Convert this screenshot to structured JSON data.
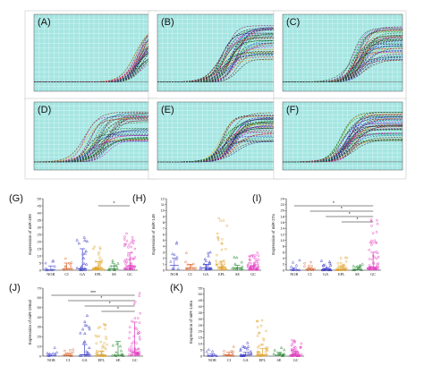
{
  "chart_data": [
    {
      "id": "A",
      "type": "line",
      "panel_label": "(A)",
      "curve_start": 0.72,
      "curve_spread": 0.06,
      "curve_count": 34,
      "dashed": true
    },
    {
      "id": "B",
      "type": "line",
      "panel_label": "(B)",
      "curve_start": 0.4,
      "curve_spread": 0.16,
      "curve_count": 40,
      "dashed": true
    },
    {
      "id": "C",
      "type": "line",
      "panel_label": "(C)",
      "curve_start": 0.45,
      "curve_spread": 0.12,
      "curve_count": 40,
      "dashed": true
    },
    {
      "id": "D",
      "type": "line",
      "panel_label": "(D)",
      "curve_start": 0.3,
      "curve_spread": 0.22,
      "curve_count": 36,
      "dashed": true
    },
    {
      "id": "E",
      "type": "line",
      "panel_label": "(E)",
      "curve_start": 0.38,
      "curve_spread": 0.16,
      "curve_count": 40,
      "dashed": true
    },
    {
      "id": "F",
      "type": "line",
      "panel_label": "(F)",
      "curve_start": 0.36,
      "curve_spread": 0.12,
      "curve_count": 40,
      "dashed": true
    },
    {
      "id": "G",
      "type": "scatter",
      "panel_label": "(G)",
      "ylabel": "Expression of miR-499",
      "categories": [
        "NOR",
        "CI",
        "GA",
        "EPL",
        "SE",
        "GC"
      ],
      "ylim": [
        0,
        50
      ],
      "yticks": [
        "0",
        "5",
        "10",
        "15",
        "20",
        "25",
        "30",
        "35",
        "40",
        "45",
        "50"
      ],
      "medians": [
        0.3,
        0.8,
        1.0,
        1.5,
        1.0,
        3.0
      ],
      "errors": [
        [
          0,
          3
        ],
        [
          0,
          5
        ],
        [
          0,
          15
        ],
        [
          0,
          6
        ],
        [
          0,
          3
        ],
        [
          0,
          12
        ]
      ],
      "n": [
        10,
        12,
        22,
        40,
        12,
        55
      ],
      "spread": [
        4,
        6,
        12,
        8,
        4,
        12
      ],
      "significance": [
        {
          "from": 3,
          "to": 5,
          "label": "*"
        }
      ]
    },
    {
      "id": "H",
      "type": "scatter",
      "panel_label": "(H)",
      "ylabel": "Expression of miR-148",
      "categories": [
        "NOR",
        "CI",
        "GA",
        "EPL",
        "SE",
        "GC"
      ],
      "ylim": [
        0,
        12
      ],
      "yticks": [
        "0",
        "1",
        "2",
        "3",
        "4",
        "5",
        "6",
        "7",
        "8",
        "9",
        "10",
        "11",
        "12"
      ],
      "medians": [
        0.8,
        0.4,
        0.4,
        0.5,
        0.4,
        0.3
      ],
      "errors": [
        [
          0,
          2
        ],
        [
          0,
          1
        ],
        [
          0,
          1
        ],
        [
          0,
          1.5
        ],
        [
          0,
          0.8
        ],
        [
          0,
          0.6
        ]
      ],
      "n": [
        10,
        12,
        22,
        40,
        12,
        55
      ],
      "spread": [
        3,
        1.5,
        1.5,
        4,
        1,
        1.5
      ],
      "significance": []
    },
    {
      "id": "I",
      "type": "scatter",
      "panel_label": "(I)",
      "ylabel": "Expression of miR-27a",
      "categories": [
        "NOR",
        "CI",
        "GA",
        "EPL",
        "SE",
        "GC"
      ],
      "ylim": [
        0,
        24
      ],
      "yticks": [
        "0",
        "2",
        "4",
        "6",
        "8",
        "10",
        "12",
        "14",
        "16",
        "18",
        "20",
        "22",
        "24"
      ],
      "medians": [
        0.2,
        0.3,
        0.2,
        0.3,
        0.3,
        1.0
      ],
      "errors": [
        [
          0,
          0.8
        ],
        [
          0,
          0.8
        ],
        [
          0,
          0.6
        ],
        [
          0,
          1
        ],
        [
          0,
          1
        ],
        [
          0,
          6
        ]
      ],
      "n": [
        10,
        12,
        22,
        40,
        12,
        55
      ],
      "spread": [
        1.5,
        1.5,
        1.5,
        2,
        1,
        8
      ],
      "significance": [
        {
          "from": 0,
          "to": 5,
          "label": "*"
        },
        {
          "from": 1,
          "to": 5,
          "label": "*"
        },
        {
          "from": 2,
          "to": 5,
          "label": "*"
        },
        {
          "from": 3,
          "to": 5,
          "label": "*"
        }
      ]
    },
    {
      "id": "J",
      "type": "scatter",
      "panel_label": "(J)",
      "ylabel": "Expression of miR-196a2",
      "categories": [
        "NOR",
        "CI",
        "GA",
        "EPL",
        "SE",
        "GC"
      ],
      "ylim": [
        0,
        70
      ],
      "yticks": [
        "0",
        "10",
        "20",
        "30",
        "40",
        "50",
        "60",
        "70"
      ],
      "medians": [
        0.5,
        0.8,
        1.5,
        1.2,
        1.0,
        4.0
      ],
      "errors": [
        [
          0,
          2
        ],
        [
          0,
          3
        ],
        [
          0,
          12
        ],
        [
          0,
          5
        ],
        [
          0,
          15
        ],
        [
          0,
          35
        ]
      ],
      "n": [
        10,
        12,
        22,
        40,
        12,
        55
      ],
      "spread": [
        5,
        5,
        20,
        15,
        8,
        30
      ],
      "significance": [
        {
          "from": 0,
          "to": 5,
          "label": "***"
        },
        {
          "from": 1,
          "to": 5,
          "label": "*"
        },
        {
          "from": 2,
          "to": 5,
          "label": "*"
        },
        {
          "from": 3,
          "to": 5,
          "label": "*"
        }
      ]
    },
    {
      "id": "K",
      "type": "scatter",
      "panel_label": "(K)",
      "ylabel": "Expression of miR-146a",
      "categories": [
        "NOR",
        "CI",
        "GA",
        "EPL",
        "SE",
        "GC"
      ],
      "ylim": [
        0,
        55
      ],
      "yticks": [
        "0",
        "5",
        "10",
        "15",
        "20",
        "25",
        "30",
        "35",
        "40",
        "45",
        "50",
        "55"
      ],
      "medians": [
        0.5,
        0.8,
        0.8,
        1.0,
        0.8,
        0.8
      ],
      "errors": [
        [
          0,
          2
        ],
        [
          0,
          3
        ],
        [
          0,
          3
        ],
        [
          0,
          6
        ],
        [
          0,
          3
        ],
        [
          0,
          4
        ]
      ],
      "n": [
        10,
        12,
        22,
        40,
        12,
        55
      ],
      "spread": [
        3,
        4,
        5,
        14,
        4,
        6
      ],
      "significance": []
    }
  ],
  "colors": {
    "plot_bg": "#a6e5e2",
    "grid": "#e6fffd",
    "groups": [
      "#5a5ad6",
      "#d9622b",
      "#3d3dc9",
      "#e0a32c",
      "#2f8f3a",
      "#e23cc0"
    ]
  }
}
